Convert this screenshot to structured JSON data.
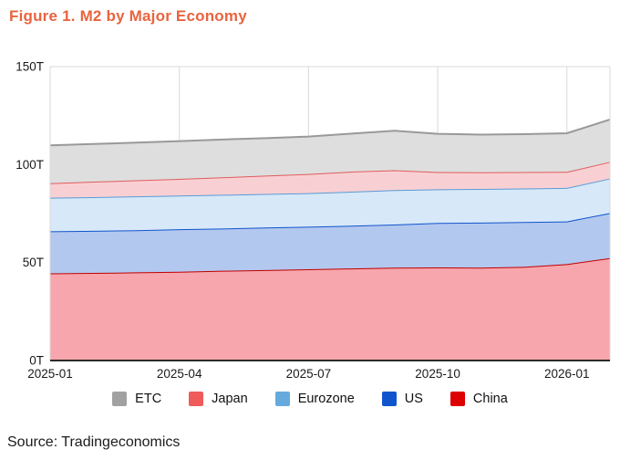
{
  "header": {
    "title": "Figure 1. M2 by Major Economy",
    "title_color": "#e8643f"
  },
  "footer": {
    "source": "Source: Tradingeconomics"
  },
  "colors": {
    "background": "#ffffff",
    "grid": "#d9d9d9",
    "plot_border": "#d9d9d9",
    "axis_line": "#2b2b2b",
    "tick_label": "#1a1a1a"
  },
  "chart_data": {
    "type": "area",
    "stacked": true,
    "title": "Figure 1. M2 by Major Economy",
    "xlabel": "",
    "ylabel": "",
    "ylim": [
      0,
      150
    ],
    "grid": true,
    "legend_position": "bottom",
    "x": [
      "2025-01",
      "2025-02",
      "2025-03",
      "2025-04",
      "2025-05",
      "2025-06",
      "2025-07",
      "2025-08",
      "2025-09",
      "2025-10",
      "2025-11",
      "2025-12",
      "2026-01",
      "2026-02"
    ],
    "series": [
      {
        "name": "China",
        "fill": "#f6a6ac",
        "line": "#c00000",
        "legend_color": "#de0000",
        "values": [
          44.5,
          44.7,
          45.0,
          45.3,
          45.8,
          46.2,
          46.6,
          47.0,
          47.4,
          47.5,
          47.4,
          47.8,
          49.2,
          52.3
        ]
      },
      {
        "name": "US",
        "fill": "#b3c8ef",
        "line": "#1155cc",
        "legend_color": "#1155cc",
        "values": [
          21.5,
          21.5,
          21.5,
          21.7,
          21.6,
          21.7,
          21.7,
          21.8,
          22.0,
          22.7,
          23.0,
          22.9,
          21.8,
          23.0
        ]
      },
      {
        "name": "Eurozone",
        "fill": "#d7e8f8",
        "line": "#5b9bd5",
        "legend_color": "#66aadd",
        "values": [
          17.1,
          17.2,
          17.3,
          17.2,
          17.2,
          17.1,
          17.1,
          17.4,
          17.6,
          17.2,
          17.2,
          17.1,
          17.1,
          17.6
        ]
      },
      {
        "name": "Japan",
        "fill": "#f8d0d4",
        "line": "#e05c5c",
        "legend_color": "#ef5a5a",
        "values": [
          7.4,
          7.9,
          8.2,
          8.5,
          8.9,
          9.4,
          9.8,
          10.2,
          10.1,
          8.8,
          8.5,
          8.4,
          8.2,
          8.5
        ]
      },
      {
        "name": "ETC",
        "fill": "#dedede",
        "line": "#999999",
        "legend_color": "#a1a1a1",
        "values": [
          19.3,
          19.2,
          19.2,
          19.3,
          19.3,
          19.1,
          19.1,
          19.4,
          20.2,
          19.5,
          19.2,
          19.3,
          19.7,
          21.6
        ]
      }
    ],
    "legend": [
      "ETC",
      "Japan",
      "Eurozone",
      "US",
      "China"
    ],
    "y_ticks": [
      {
        "value": 0,
        "label": "0T"
      },
      {
        "value": 50,
        "label": "50T"
      },
      {
        "value": 100,
        "label": "100T"
      },
      {
        "value": 150,
        "label": "150T"
      }
    ],
    "x_ticks": [
      {
        "index": 0,
        "label": "2025-01"
      },
      {
        "index": 3,
        "label": "2025-04"
      },
      {
        "index": 6,
        "label": "2025-07"
      },
      {
        "index": 9,
        "label": "2025-10"
      },
      {
        "index": 12,
        "label": "2026-01"
      }
    ]
  }
}
